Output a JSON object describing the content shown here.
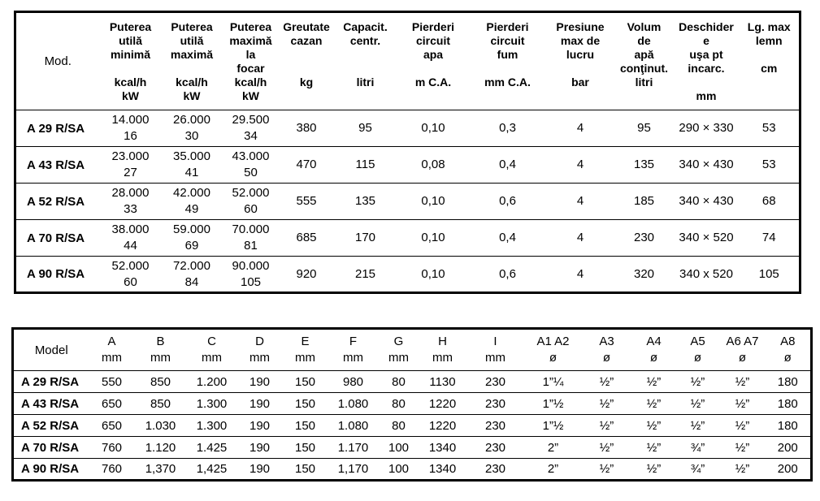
{
  "colors": {
    "background": "#ffffff",
    "text": "#000000",
    "border": "#000000"
  },
  "table1": {
    "model_header": "Mod.",
    "columns": [
      {
        "id": "putere-utila-minima",
        "label": "Puterea\nutilă\nminimă\n\nkcal/h\nkW"
      },
      {
        "id": "putere-utila-maxima",
        "label": "Puterea\nutilă\nmaximă\n\nkcal/h\nkW"
      },
      {
        "id": "putere-maxima-focar",
        "label": "Puterea\nmaximă\nla\nfocar\nkcal/h\nkW"
      },
      {
        "id": "greutate-cazan",
        "label": "Greutate\ncazan\n\n\nkg"
      },
      {
        "id": "capacitate-centrala",
        "label": "Capacit.\ncentr.\n\n\nlitri"
      },
      {
        "id": "pierderi-circuit-apa",
        "label": "Pierderi\ncircuit\napa\n\nm C.A."
      },
      {
        "id": "pierderi-circuit-fum",
        "label": "Pierderi\ncircuit\nfum\n\nmm C.A."
      },
      {
        "id": "presiune-max-lucru",
        "label": "Presiune\nmax de\nlucru\n\nbar"
      },
      {
        "id": "volum-apa-continut",
        "label": "Volum\nde\napă\nconţinut.\nlitri"
      },
      {
        "id": "deschidere-usa",
        "label": "Deschider\ne\nuşa pt\nincarc.\n\nmm"
      },
      {
        "id": "lungime-max-lemn",
        "label": "Lg. max\nlemn\n\ncm"
      }
    ],
    "rows": [
      {
        "model": "A 29 R/SA",
        "values": [
          "14.000\n16",
          "26.000\n30",
          "29.500\n34",
          "380",
          "95",
          "0,10",
          "0,3",
          "4",
          "95",
          "290 × 330",
          "53"
        ]
      },
      {
        "model": "A 43 R/SA",
        "values": [
          "23.000\n27",
          "35.000\n41",
          "43.000\n50",
          "470",
          "115",
          "0,08",
          "0,4",
          "4",
          "135",
          "340 × 430",
          "53"
        ]
      },
      {
        "model": "A 52 R/SA",
        "values": [
          "28.000\n33",
          "42.000\n49",
          "52.000\n60",
          "555",
          "135",
          "0,10",
          "0,6",
          "4",
          "185",
          "340 × 430",
          "68"
        ]
      },
      {
        "model": "A 70 R/SA",
        "values": [
          "38.000\n44",
          "59.000\n69",
          "70.000\n81",
          "685",
          "170",
          "0,10",
          "0,4",
          "4",
          "230",
          "340 × 520",
          "74"
        ]
      },
      {
        "model": "A 90 R/SA",
        "values": [
          "52.000\n60",
          "72.000\n84",
          "90.000\n105",
          "920",
          "215",
          "0,10",
          "0,6",
          "4",
          "320",
          "340 x 520",
          "105"
        ]
      }
    ]
  },
  "table2": {
    "model_header": "Model",
    "columns": [
      {
        "id": "dim-a",
        "label": "A\nmm"
      },
      {
        "id": "dim-b",
        "label": "B\nmm"
      },
      {
        "id": "dim-c",
        "label": "C\nmm"
      },
      {
        "id": "dim-d",
        "label": "D\nmm"
      },
      {
        "id": "dim-e",
        "label": "E\nmm"
      },
      {
        "id": "dim-f",
        "label": "F\nmm"
      },
      {
        "id": "dim-g",
        "label": "G\nmm"
      },
      {
        "id": "dim-h",
        "label": "H\nmm"
      },
      {
        "id": "dim-i",
        "label": "I\nmm"
      },
      {
        "id": "racord-a1-a2",
        "label": "A1 A2\nø"
      },
      {
        "id": "racord-a3",
        "label": "A3\nø"
      },
      {
        "id": "racord-a4",
        "label": "A4\nø"
      },
      {
        "id": "racord-a5",
        "label": "A5\nø"
      },
      {
        "id": "racord-a6-a7",
        "label": "A6 A7\nø"
      },
      {
        "id": "racord-a8",
        "label": "A8\nø"
      }
    ],
    "rows": [
      {
        "model": "A 29 R/SA",
        "values": [
          "550",
          "850",
          "1.200",
          "190",
          "150",
          "980",
          "80",
          "1130",
          "230",
          "1”¼",
          "½”",
          "½”",
          "½”",
          "½”",
          "180"
        ]
      },
      {
        "model": "A 43 R/SA",
        "values": [
          "650",
          "850",
          "1.300",
          "190",
          "150",
          "1.080",
          "80",
          "1220",
          "230",
          "1”½",
          "½”",
          "½”",
          "½”",
          "½”",
          "180"
        ]
      },
      {
        "model": "A 52 R/SA",
        "values": [
          "650",
          "1.030",
          "1.300",
          "190",
          "150",
          "1.080",
          "80",
          "1220",
          "230",
          "1”½",
          "½”",
          "½”",
          "½”",
          "½”",
          "180"
        ]
      },
      {
        "model": "A 70 R/SA",
        "values": [
          "760",
          "1.120",
          "1.425",
          "190",
          "150",
          "1.170",
          "100",
          "1340",
          "230",
          "2”",
          "½”",
          "½”",
          "¾”",
          "½”",
          "200"
        ]
      },
      {
        "model": "A 90 R/SA",
        "values": [
          "760",
          "1,370",
          "1,425",
          "190",
          "150",
          "1,170",
          "100",
          "1340",
          "230",
          "2”",
          "½”",
          "½”",
          "¾”",
          "½”",
          "200"
        ]
      }
    ]
  }
}
